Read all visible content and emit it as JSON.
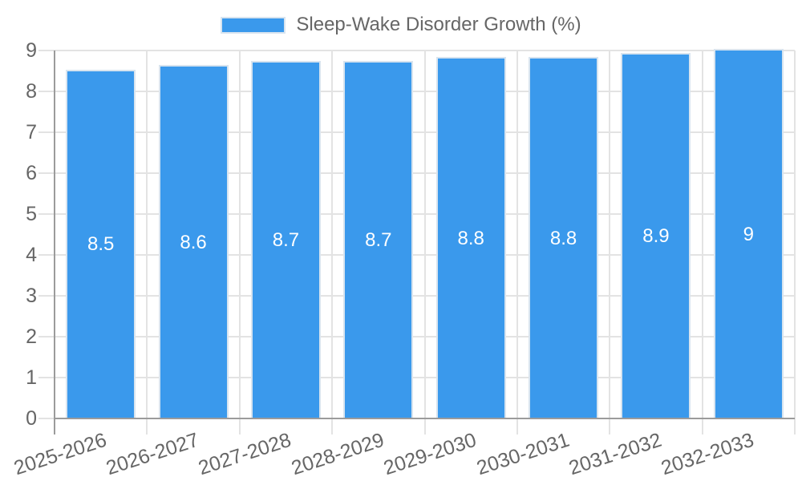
{
  "legend": {
    "label": "Sleep-Wake Disorder Growth (%)"
  },
  "chart_data": {
    "type": "bar",
    "title": "Sleep-Wake Disorder Growth (%)",
    "categories": [
      "2025-2026",
      "2026-2027",
      "2027-2028",
      "2028-2029",
      "2029-2030",
      "2030-2031",
      "2031-2032",
      "2032-2033"
    ],
    "series": [
      {
        "name": "Sleep-Wake Disorder Growth (%)",
        "values": [
          8.5,
          8.6,
          8.7,
          8.7,
          8.8,
          8.8,
          8.9,
          9
        ]
      }
    ],
    "value_labels": [
      "8.5",
      "8.6",
      "8.7",
      "8.7",
      "8.8",
      "8.8",
      "8.9",
      "9"
    ],
    "xlabel": "",
    "ylabel": "",
    "ylim": [
      0,
      9
    ],
    "yticks": [
      0,
      1,
      2,
      3,
      4,
      5,
      6,
      7,
      8,
      9
    ],
    "grid": true,
    "legend_position": "top",
    "colors": {
      "bar_fill": "#3A99EC",
      "bar_border": "#D8E4EF",
      "grid_line": "#E3E3E3",
      "axis_line": "#9B9B9B",
      "tick_text": "#666666",
      "legend_text": "#666666",
      "value_label_text": "#FFFFFF",
      "background": "#FFFFFF"
    }
  }
}
